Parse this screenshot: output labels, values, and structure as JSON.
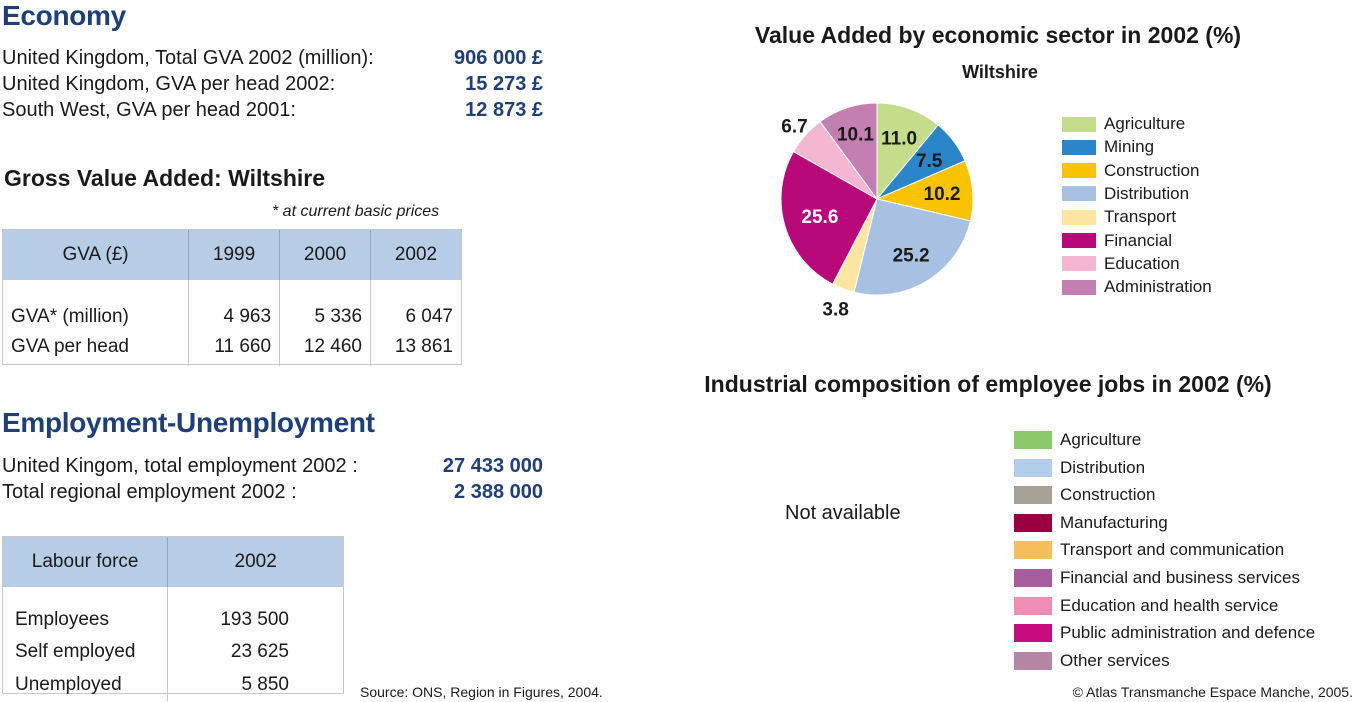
{
  "economy": {
    "heading": "Economy",
    "rows": [
      {
        "label": "United Kingdom, Total GVA 2002 (million):",
        "value": "906 000 £"
      },
      {
        "label": "United Kingdom, GVA per head 2002:",
        "value": "15 273 £"
      },
      {
        "label": "South West, GVA per head 2001:",
        "value": "12 873 £"
      }
    ]
  },
  "gva_table": {
    "heading": "Gross Value Added: Wiltshire",
    "note": "* at current basic prices",
    "headers": [
      "GVA (£)",
      "1999",
      "2000",
      "2002"
    ],
    "rows": [
      [
        "GVA* (million)",
        "4 963",
        "5 336",
        "6 047"
      ],
      [
        "GVA per head",
        "11 660",
        "12 460",
        "13 861"
      ]
    ]
  },
  "employment": {
    "heading": "Employment-Unemployment",
    "rows": [
      {
        "label": "United Kingom, total employment 2002 :",
        "value": "27 433 000"
      },
      {
        "label": "Total regional employment 2002 :",
        "value": "2 388 000"
      }
    ]
  },
  "labour_table": {
    "headers": [
      "Labour force",
      "2002"
    ],
    "rows": [
      [
        "Employees",
        "193 500"
      ],
      [
        "Self employed",
        "23 625"
      ],
      [
        "Unemployed",
        "5 850"
      ]
    ]
  },
  "chart_data": [
    {
      "type": "pie",
      "title": "Value Added by economic sector in 2002 (%)",
      "subtitle": "Wiltshire",
      "categories": [
        "Agriculture",
        "Mining",
        "Construction",
        "Distribution",
        "Transport",
        "Financial",
        "Education",
        "Administration"
      ],
      "values": [
        11.0,
        7.5,
        10.2,
        25.2,
        3.8,
        25.6,
        6.7,
        10.1
      ],
      "labels": [
        "11.0",
        "7.5",
        "10.2",
        "25.2",
        "3.8",
        "25.6",
        "6.7",
        "10.1"
      ],
      "colors": [
        "#c5dd8a",
        "#2a86c8",
        "#f8c300",
        "#a8c0e2",
        "#fde7a0",
        "#b8087a",
        "#f4b6d0",
        "#c47fb2"
      ],
      "legend_position": "right"
    },
    {
      "type": "pie",
      "title": "Industrial composition of employee jobs in 2002 (%)",
      "status": "Not available",
      "categories": [
        "Agriculture",
        "Distribution",
        "Construction",
        "Manufacturing",
        "Transport and communication",
        "Financial and business services",
        "Education and health service",
        "Public administration and defence",
        "Other services"
      ],
      "colors": [
        "#8dc96b",
        "#b1cdea",
        "#a8a195",
        "#9a0040",
        "#f7bf5c",
        "#a85d9f",
        "#ef8db5",
        "#c80b7e",
        "#b686a6"
      ],
      "legend_position": "right"
    }
  ],
  "footer": {
    "source": "Source: ONS, Region in Figures, 2004.",
    "copyright": "© Atlas Transmanche Espace Manche, 2005."
  }
}
